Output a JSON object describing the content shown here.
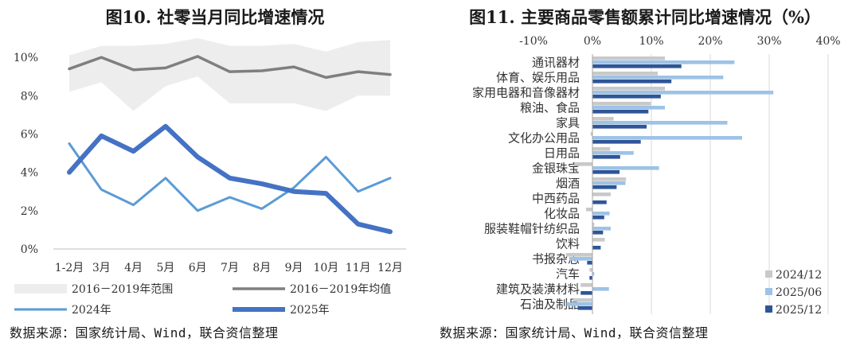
{
  "chart_data": [
    {
      "type": "line",
      "title": "图10.  社零当月同比增速情况",
      "categories": [
        "1-2月",
        "3月",
        "4月",
        "5月",
        "6月",
        "7月",
        "8月",
        "9月",
        "10月",
        "11月",
        "12月"
      ],
      "yticks": [
        "0%",
        "2%",
        "4%",
        "6%",
        "8%",
        "10%"
      ],
      "ylim": [
        0,
        11
      ],
      "band": {
        "name": "2016－2019年范围",
        "upper": [
          10.1,
          10.6,
          10.6,
          10.7,
          11.0,
          10.6,
          10.6,
          10.7,
          10.3,
          10.8,
          10.9
        ],
        "lower": [
          8.2,
          8.7,
          7.2,
          8.5,
          9.0,
          7.6,
          7.6,
          7.6,
          7.2,
          8.0,
          8.0
        ]
      },
      "series": [
        {
          "name": "2016－2019年均值",
          "values": [
            9.4,
            10.0,
            9.35,
            9.45,
            10.05,
            9.25,
            9.3,
            9.5,
            8.95,
            9.25,
            9.1
          ]
        },
        {
          "name": "2024年",
          "values": [
            5.5,
            3.1,
            2.3,
            3.7,
            2.0,
            2.7,
            2.1,
            3.2,
            4.8,
            3.0,
            3.7
          ]
        },
        {
          "name": "2025年",
          "values": [
            4.0,
            5.9,
            5.1,
            6.4,
            4.8,
            3.7,
            3.4,
            3.0,
            2.9,
            1.3,
            0.9
          ]
        }
      ],
      "colors": {
        "band": "#ededed",
        "avg": "#7f7f7f",
        "y2024": "#5b9bd5",
        "y2025": "#4472c4"
      },
      "legend_position": "bottom"
    },
    {
      "type": "bar",
      "orientation": "horizontal",
      "title": "图11.  主要商品零售额累计同比增速情况（%）",
      "xticks": [
        "-10%",
        "0%",
        "10%",
        "20%",
        "30%",
        "40%"
      ],
      "xlim": [
        -10,
        40
      ],
      "categories": [
        "通讯器材",
        "体育、娱乐用品",
        "家用电器和音像器材",
        "粮油、食品",
        "家具",
        "文化办公用品",
        "日用品",
        "金银珠宝",
        "烟酒",
        "中西药品",
        "化妆品",
        "服装鞋帽针纺织品",
        "饮料",
        "书报杂志",
        "汽车",
        "建筑及装潢材料",
        "石油及制品"
      ],
      "series": [
        {
          "name": "2024/12",
          "values": [
            12.3,
            11.1,
            12.3,
            9.9,
            3.6,
            -0.3,
            3.0,
            -3.1,
            5.7,
            3.1,
            -1.1,
            0.3,
            2.1,
            -4.5,
            -0.5,
            -2.0,
            -3.3
          ]
        },
        {
          "name": "2025/06",
          "values": [
            24.1,
            22.2,
            30.7,
            12.3,
            22.9,
            25.4,
            7.0,
            11.3,
            5.6,
            0.0,
            2.9,
            3.1,
            0.0,
            -3.9,
            0.3,
            2.8,
            -4.4
          ]
        },
        {
          "name": "2025/12",
          "values": [
            15.1,
            13.4,
            11.6,
            9.5,
            9.2,
            8.2,
            4.7,
            4.6,
            4.1,
            2.4,
            2.0,
            1.8,
            1.4,
            -0.9,
            -0.5,
            -2.0,
            -2.5
          ]
        }
      ],
      "colors": {
        "s2024_12": "#c9c9c9",
        "s2025_06": "#9dc3e6",
        "s2025_12": "#2f5597"
      },
      "legend_position": "bottom-right"
    }
  ],
  "source_left": "数据来源：国家统计局、Wind，联合资信整理",
  "source_right": "数据来源：国家统计局、Wind，联合资信整理"
}
